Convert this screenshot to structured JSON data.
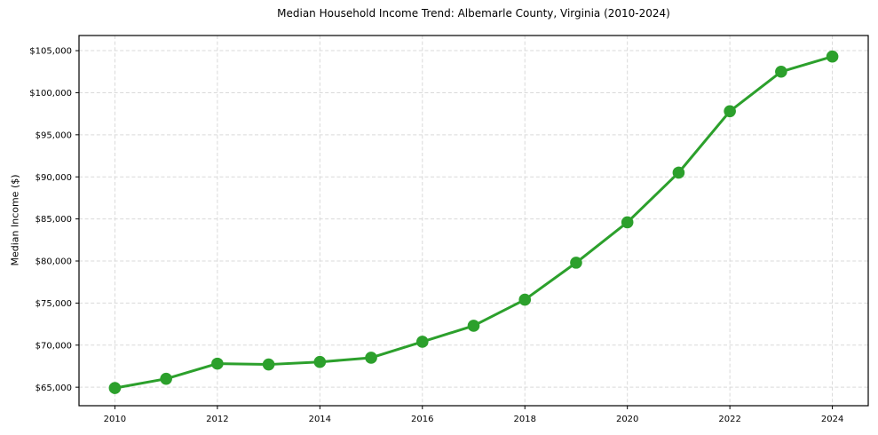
{
  "figure": {
    "background": "#ffffff"
  },
  "chart_data": {
    "type": "line",
    "title": "Median Household Income Trend: Albemarle County, Virginia (2010-2024)",
    "xlabel": "",
    "ylabel": "Median Income ($)",
    "x": [
      2010,
      2011,
      2012,
      2013,
      2014,
      2015,
      2016,
      2017,
      2018,
      2019,
      2020,
      2021,
      2022,
      2023,
      2024
    ],
    "series": [
      {
        "name": "Median Household Income",
        "color": "#2ca02c",
        "marker": "circle",
        "values": [
          64900,
          66000,
          67800,
          67700,
          68000,
          68500,
          70400,
          72300,
          75400,
          79800,
          84600,
          90500,
          97800,
          102500,
          104300
        ]
      }
    ],
    "xticks": {
      "values": [
        2010,
        2012,
        2014,
        2016,
        2018,
        2020,
        2022,
        2024
      ],
      "labels": [
        "2010",
        "2012",
        "2014",
        "2016",
        "2018",
        "2020",
        "2022",
        "2024"
      ]
    },
    "yticks": {
      "values": [
        65000,
        70000,
        75000,
        80000,
        85000,
        90000,
        95000,
        100000,
        105000
      ],
      "labels": [
        "$65,000",
        "$70,000",
        "$75,000",
        "$80,000",
        "$85,000",
        "$90,000",
        "$95,000",
        "$100,000",
        "$105,000"
      ]
    },
    "xlim": [
      2009.3,
      2024.7
    ],
    "ylim": [
      62800,
      106800
    ],
    "grid": {
      "show": true,
      "style": "dashed",
      "color": "#d9d9d9"
    },
    "axis_color": "#000000",
    "legend": "none"
  }
}
